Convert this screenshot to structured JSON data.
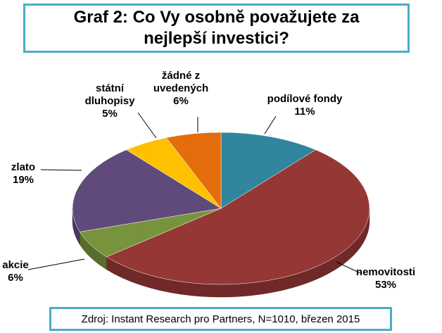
{
  "title": "Graf 2: Co Vy osobně považujete za nejlepší investici?",
  "chart_data": {
    "type": "pie",
    "categories": [
      "podílové fondy",
      "nemovitosti",
      "akcie",
      "zlato",
      "státní\ndluhopisy",
      "žádné z\nuvedených"
    ],
    "values": [
      11,
      53,
      6,
      19,
      5,
      6
    ],
    "value_labels": [
      "11%",
      "53%",
      "6%",
      "19%",
      "5%",
      "6%"
    ],
    "colors": [
      "#31859c",
      "#953735",
      "#77933c",
      "#604a7b",
      "#ffc000",
      "#e46c0a"
    ]
  },
  "source": "Zdroj: Instant Research pro Partners, N=1010, březen 2015"
}
